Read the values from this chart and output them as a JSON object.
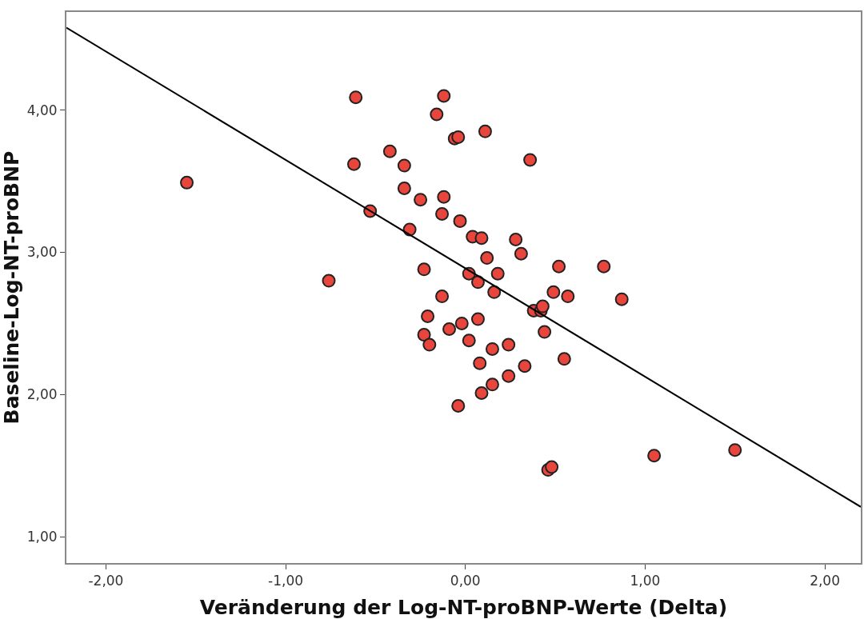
{
  "chart_data": {
    "type": "scatter",
    "xlabel": "Veränderung der Log-NT-proBNP-Werte (Delta)",
    "ylabel": "Baseline-Log-NT-proBNP",
    "xlim": [
      -2.22,
      2.2
    ],
    "ylim": [
      0.815,
      4.69
    ],
    "xticks": [
      {
        "value": -2,
        "label": "-2,00"
      },
      {
        "value": -1,
        "label": "-1,00"
      },
      {
        "value": 0,
        "label": "0,00"
      },
      {
        "value": 1,
        "label": "1,00"
      },
      {
        "value": 2,
        "label": "2,00"
      }
    ],
    "yticks": [
      {
        "value": 1,
        "label": "1,00"
      },
      {
        "value": 2,
        "label": "2,00"
      },
      {
        "value": 3,
        "label": "3,00"
      },
      {
        "value": 4,
        "label": "4,00"
      }
    ],
    "marker": "circle",
    "series": [
      {
        "color": "#e8463c",
        "x": [
          -1.55,
          -0.76,
          -0.62,
          -0.61,
          -0.53,
          -0.42,
          -0.34,
          -0.34,
          -0.31,
          -0.25,
          -0.23,
          -0.23,
          -0.21,
          -0.2,
          -0.16,
          -0.13,
          -0.13,
          -0.12,
          -0.12,
          -0.09,
          -0.06,
          -0.04,
          -0.03,
          -0.04,
          -0.02,
          0.02,
          0.02,
          0.04,
          0.07,
          0.07,
          0.08,
          0.09,
          0.09,
          0.11,
          0.12,
          0.15,
          0.15,
          0.16,
          0.18,
          0.24,
          0.24,
          0.28,
          0.31,
          0.33,
          0.36,
          0.38,
          0.42,
          0.43,
          0.44,
          0.46,
          0.48,
          0.49,
          0.52,
          0.55,
          0.57,
          0.77,
          0.87,
          1.05,
          1.5
        ],
        "values": [
          3.49,
          2.8,
          3.62,
          4.09,
          3.29,
          3.71,
          3.61,
          3.45,
          3.16,
          3.37,
          2.88,
          2.42,
          2.55,
          2.35,
          3.97,
          2.69,
          3.27,
          3.39,
          4.1,
          2.46,
          3.8,
          3.81,
          3.22,
          1.92,
          2.5,
          2.85,
          2.38,
          3.11,
          2.79,
          2.53,
          2.22,
          2.01,
          3.1,
          3.85,
          2.96,
          2.32,
          2.07,
          2.72,
          2.85,
          2.35,
          2.13,
          3.09,
          2.99,
          2.2,
          3.65,
          2.59,
          2.59,
          2.62,
          2.44,
          1.47,
          1.49,
          2.72,
          2.9,
          2.25,
          2.69,
          2.9,
          2.67,
          1.57,
          1.61
        ]
      },
      {
        "type": "line",
        "color": "#000000",
        "marker": "none",
        "line_style": "solid",
        "x": [
          -2.22,
          2.2
        ],
        "values": [
          4.58,
          1.21
        ]
      }
    ]
  }
}
